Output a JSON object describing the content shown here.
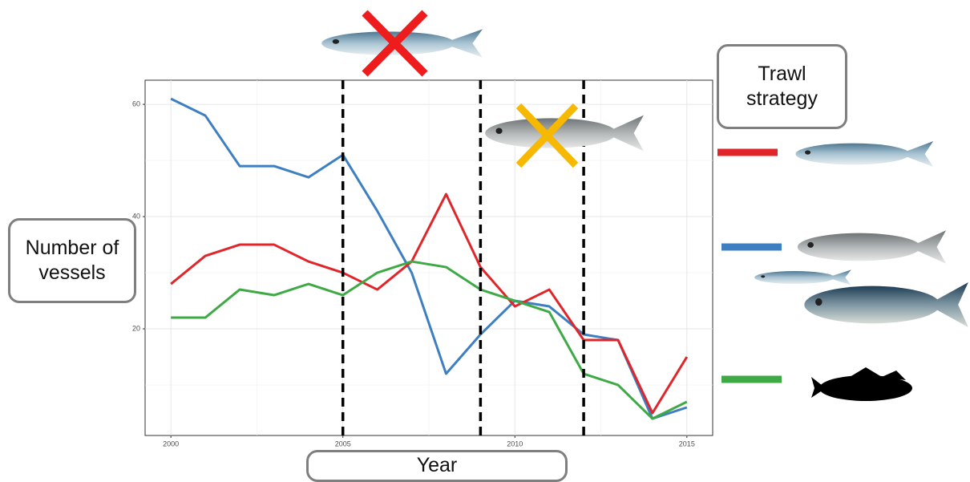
{
  "chart_data": {
    "type": "line",
    "x": [
      2000,
      2001,
      2002,
      2003,
      2004,
      2005,
      2006,
      2007,
      2008,
      2009,
      2010,
      2011,
      2012,
      2013,
      2014,
      2015
    ],
    "series": [
      {
        "color": "#3d7fc0",
        "values": [
          61,
          58,
          49,
          49,
          47,
          51,
          41,
          30,
          12,
          19,
          25,
          24,
          19,
          18,
          4,
          6
        ]
      },
      {
        "color": "#e0262a",
        "values": [
          28,
          33,
          35,
          35,
          32,
          30,
          27,
          32,
          44,
          31,
          24,
          27,
          18,
          18,
          5,
          15
        ]
      },
      {
        "color": "#3faa45",
        "values": [
          22,
          22,
          27,
          26,
          28,
          26,
          30,
          32,
          31,
          27,
          25,
          23,
          12,
          10,
          4,
          7
        ]
      }
    ],
    "xlim": [
      1999.25,
      2015.75
    ],
    "xticks": [
      2000,
      2005,
      2010,
      2015
    ],
    "ylim": [
      1,
      64.3
    ],
    "yticks": [
      20,
      40,
      60
    ],
    "vlines": [
      2005,
      2009,
      2012
    ],
    "grid": true,
    "ylabel": "Number of vessels",
    "xlabel": "Year",
    "legend_title": "Trawl strategy"
  }
}
